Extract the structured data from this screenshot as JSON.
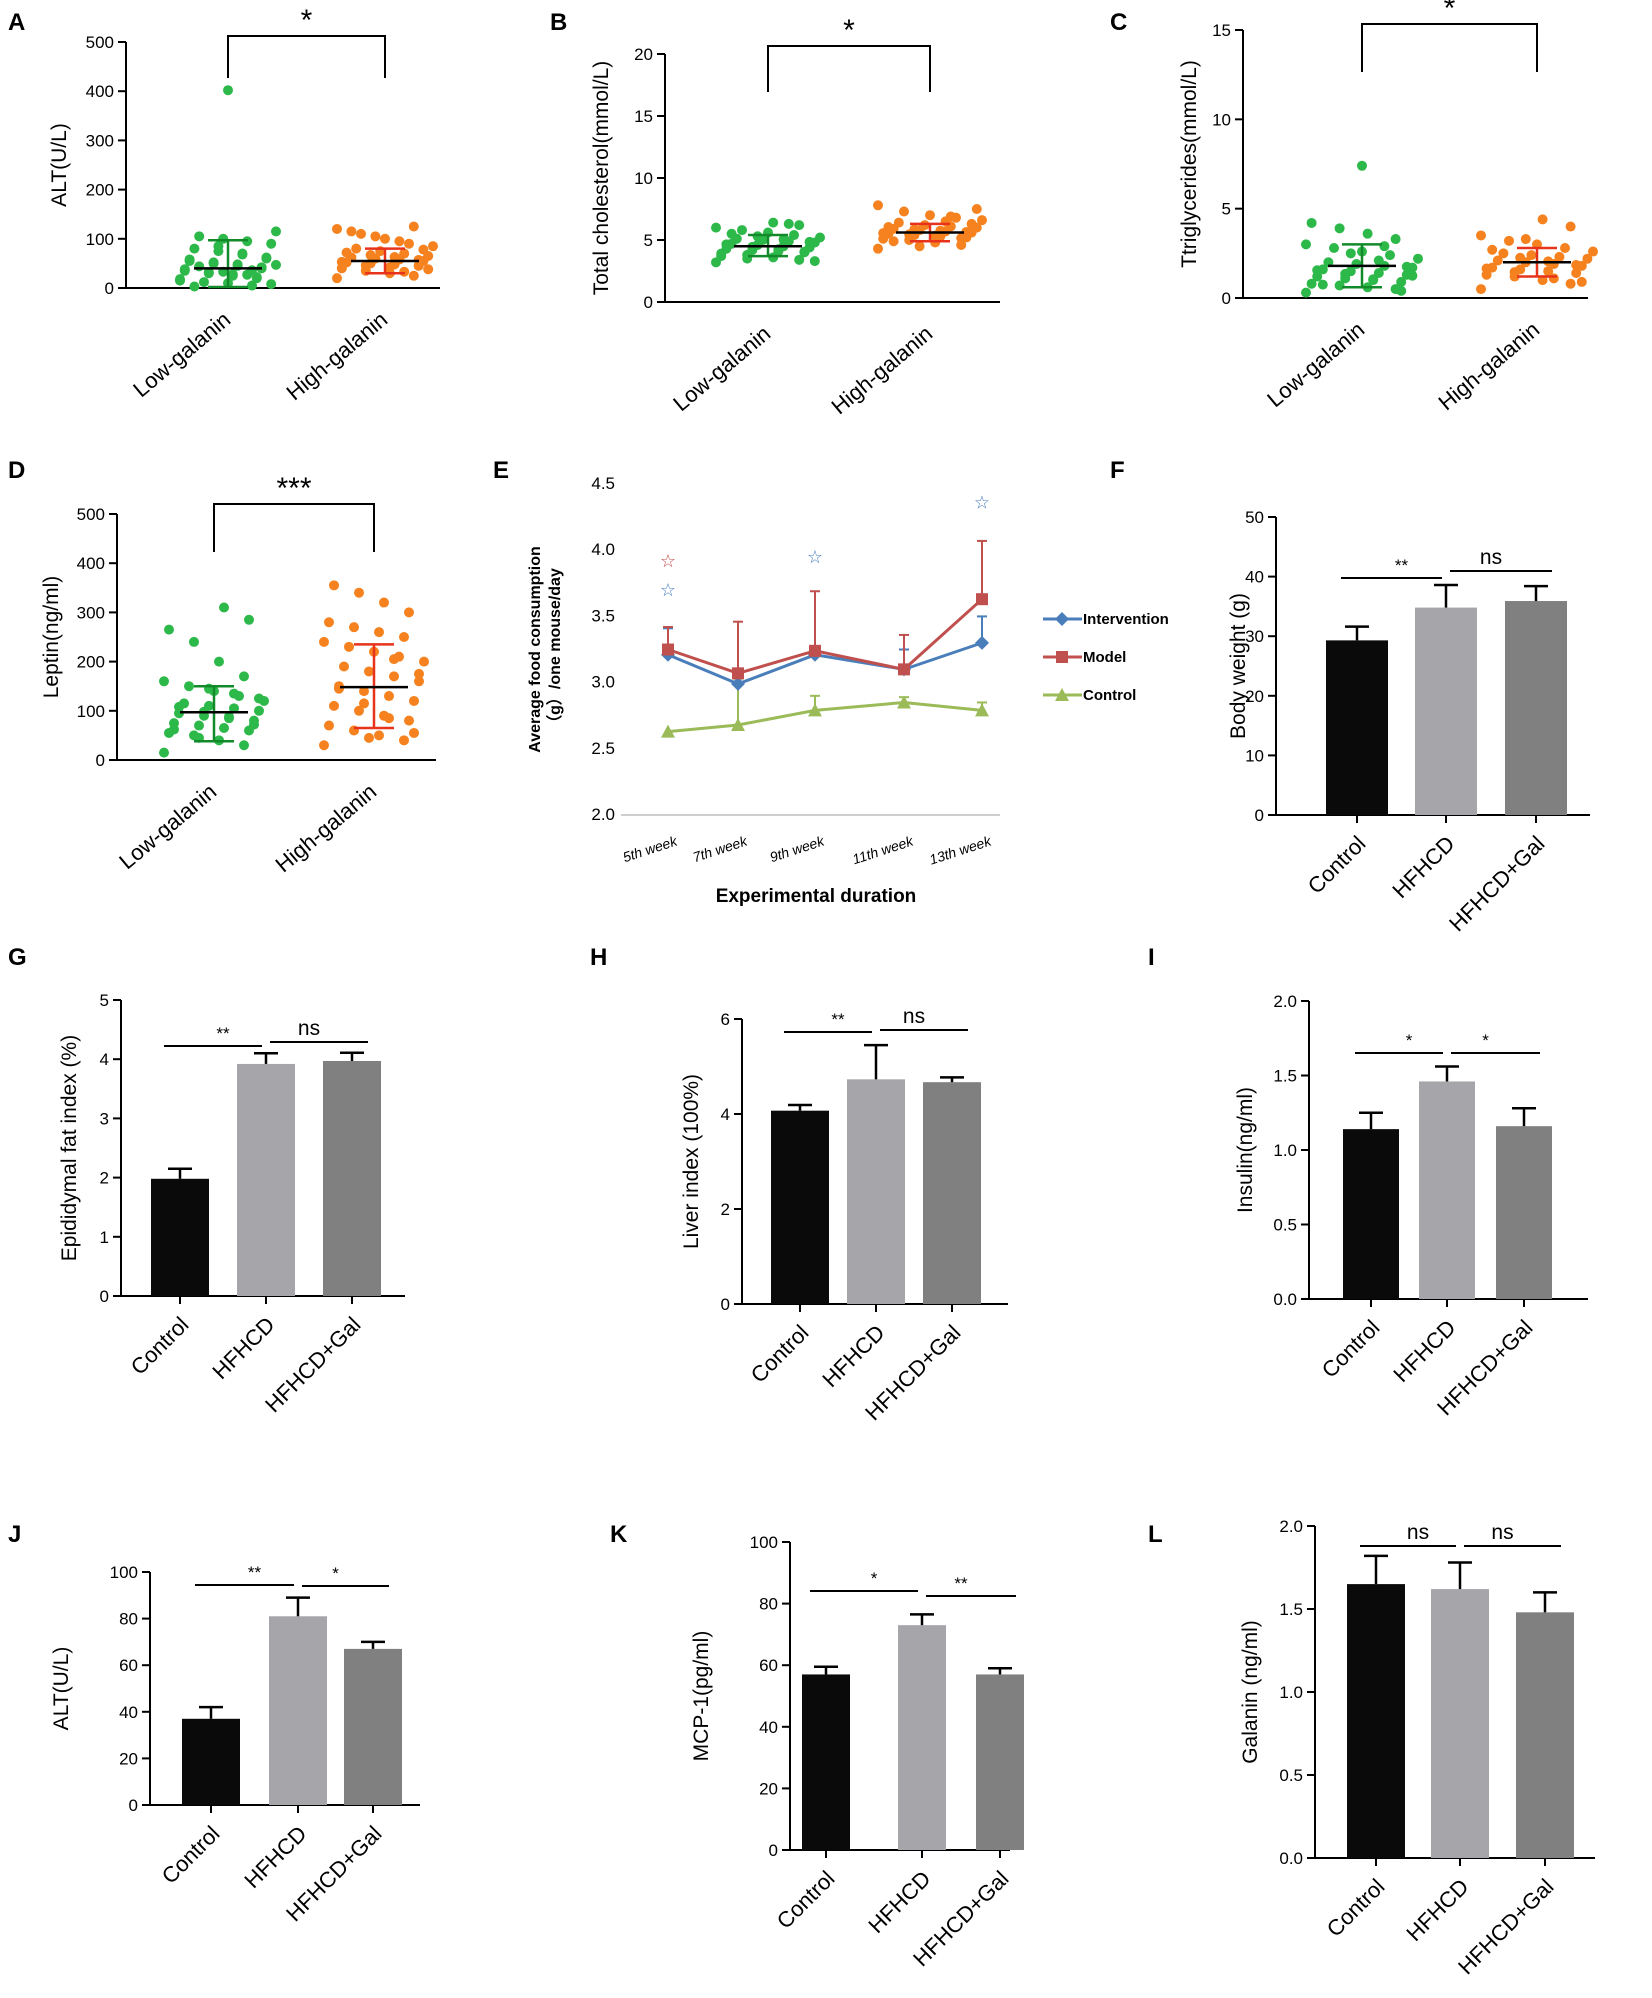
{
  "colors": {
    "low_galanin": "#2db84a",
    "high_galanin": "#f5821f",
    "low_error": "#138a2a",
    "high_error": "#e8331c",
    "bar_control": "#0a0a0a",
    "bar_hfhcd": "#a6a6aa",
    "bar_hfhcd_gal": "#808080",
    "line_intervention": "#4a7ebb",
    "line_model": "#c0504d",
    "line_control": "#9bbb59",
    "star_model": "#c0504d",
    "star_intervention": "#4a7ebb"
  },
  "chart_data": [
    {
      "panel": "A",
      "type": "scatter",
      "ylabel": "ALT(U/L)",
      "ylim": [
        0,
        500
      ],
      "yticks": [
        "0",
        "100",
        "200",
        "300",
        "400",
        "500"
      ],
      "categories": [
        "Low-galanin",
        "High-galanin"
      ],
      "groups": [
        {
          "name": "Low-galanin",
          "mean": 40,
          "sd_upper": 97,
          "sd_lower": 2,
          "outliers": [
            402
          ],
          "points": [
            15,
            20,
            25,
            30,
            35,
            40,
            45,
            50,
            55,
            60,
            70,
            75,
            80,
            90,
            95,
            100,
            105,
            115,
            5,
            10,
            12,
            18,
            22,
            28,
            32,
            38,
            42,
            48,
            52,
            58,
            62,
            68,
            85,
            3,
            8,
            27,
            33,
            44,
            47,
            36
          ]
        },
        {
          "name": "High-galanin",
          "mean": 55,
          "sd_upper": 80,
          "sd_lower": 30,
          "outliers": [],
          "points": [
            20,
            25,
            30,
            35,
            40,
            45,
            48,
            50,
            52,
            55,
            58,
            60,
            62,
            65,
            70,
            75,
            80,
            85,
            90,
            100,
            110,
            120,
            125,
            42,
            46,
            53,
            57,
            63,
            67,
            72,
            78,
            95,
            105,
            115,
            38,
            33
          ]
        }
      ],
      "significance": "*"
    },
    {
      "panel": "B",
      "type": "scatter",
      "ylabel": "Total cholesterol(mmol/L)",
      "ylim": [
        0,
        20
      ],
      "yticks": [
        "0",
        "5",
        "10",
        "15",
        "20"
      ],
      "categories": [
        "Low-galanin",
        "High-galanin"
      ],
      "groups": [
        {
          "name": "Low-galanin",
          "mean": 4.5,
          "sd_upper": 5.4,
          "sd_lower": 3.7,
          "outliers": [],
          "points": [
            3.2,
            3.4,
            3.6,
            3.8,
            3.9,
            4.0,
            4.1,
            4.2,
            4.3,
            4.4,
            4.5,
            4.6,
            4.7,
            4.8,
            4.9,
            5.0,
            5.1,
            5.2,
            5.4,
            5.6,
            5.8,
            6.0,
            6.2,
            6.4,
            3.5,
            3.7,
            4.05,
            4.25,
            4.45,
            4.65,
            4.85,
            5.05,
            5.3,
            5.5,
            3.3,
            6.3
          ]
        },
        {
          "name": "High-galanin",
          "mean": 5.6,
          "sd_upper": 6.3,
          "sd_lower": 4.9,
          "outliers": [],
          "points": [
            4.3,
            4.6,
            4.8,
            5.0,
            5.1,
            5.2,
            5.3,
            5.4,
            5.5,
            5.6,
            5.7,
            5.8,
            5.9,
            6.0,
            6.1,
            6.2,
            6.4,
            6.6,
            6.8,
            7.0,
            7.3,
            7.8,
            5.15,
            5.35,
            5.45,
            5.55,
            5.65,
            5.75,
            5.85,
            6.05,
            6.3,
            6.5,
            4.5,
            4.9,
            7.5,
            6.9
          ]
        }
      ],
      "significance": "*"
    },
    {
      "panel": "C",
      "type": "scatter",
      "ylabel": "Ttriglycerides(mmol/L)",
      "ylim": [
        0,
        15
      ],
      "yticks": [
        "0",
        "5",
        "10",
        "15"
      ],
      "categories": [
        "Low-galanin",
        "High-galanin"
      ],
      "groups": [
        {
          "name": "Low-galanin",
          "mean": 1.8,
          "sd_upper": 3.0,
          "sd_lower": 0.6,
          "outliers": [
            7.4
          ],
          "points": [
            0.3,
            0.5,
            0.6,
            0.7,
            0.8,
            0.9,
            1.0,
            1.1,
            1.2,
            1.3,
            1.4,
            1.5,
            1.6,
            1.7,
            1.8,
            1.9,
            2.0,
            2.2,
            2.4,
            2.6,
            2.8,
            3.0,
            3.3,
            3.6,
            3.9,
            4.2,
            0.4,
            1.05,
            1.35,
            1.55,
            1.75,
            2.1,
            2.5,
            0.75,
            1.25,
            2.9
          ]
        },
        {
          "name": "High-galanin",
          "mean": 2.0,
          "sd_upper": 2.8,
          "sd_lower": 1.2,
          "outliers": [],
          "points": [
            0.5,
            0.8,
            1.0,
            1.2,
            1.3,
            1.4,
            1.5,
            1.6,
            1.7,
            1.8,
            1.9,
            2.0,
            2.1,
            2.2,
            2.3,
            2.4,
            2.5,
            2.6,
            2.8,
            3.0,
            3.2,
            3.5,
            4.0,
            4.4,
            1.45,
            1.65,
            1.85,
            2.05,
            2.25,
            2.7,
            0.9,
            1.1,
            3.3
          ]
        }
      ],
      "significance": "*"
    },
    {
      "panel": "D",
      "type": "scatter",
      "ylabel": "Leptin(ng/ml)",
      "ylim": [
        0,
        500
      ],
      "yticks": [
        "0",
        "100",
        "200",
        "300",
        "400",
        "500"
      ],
      "categories": [
        "Low-galanin",
        "High-galanin"
      ],
      "groups": [
        {
          "name": "Low-galanin",
          "mean": 97,
          "sd_upper": 150,
          "sd_lower": 38,
          "outliers": [],
          "points": [
            15,
            30,
            40,
            50,
            55,
            60,
            65,
            70,
            75,
            80,
            85,
            90,
            95,
            100,
            105,
            110,
            115,
            120,
            130,
            140,
            150,
            160,
            170,
            200,
            240,
            265,
            285,
            310,
            45,
            62,
            72,
            88,
            98,
            108,
            125,
            135,
            145
          ]
        },
        {
          "name": "High-galanin",
          "mean": 148,
          "sd_upper": 235,
          "sd_lower": 65,
          "outliers": [],
          "points": [
            30,
            40,
            50,
            60,
            70,
            80,
            90,
            100,
            110,
            120,
            130,
            140,
            150,
            160,
            170,
            180,
            190,
            200,
            210,
            220,
            230,
            240,
            250,
            260,
            270,
            280,
            300,
            320,
            340,
            355,
            55,
            85,
            115,
            145,
            175,
            205,
            45
          ]
        }
      ],
      "significance": "***"
    },
    {
      "panel": "E",
      "type": "line",
      "ylabel_line1": "Average food consumption",
      "ylabel_line2": "（g）/one mouse/day",
      "xlabel": "Experimental duration",
      "ylim": [
        2.0,
        4.5
      ],
      "yticks": [
        "2.0",
        "2.5",
        "3.0",
        "3.5",
        "4.0",
        "4.5"
      ],
      "categories": [
        "5th week",
        "7th week",
        "9th week",
        "11th week",
        "13th week"
      ],
      "series": [
        {
          "name": "Intervention",
          "values": [
            3.21,
            2.99,
            3.21,
            3.1,
            3.3
          ],
          "errors": [
            0.2,
            0.0,
            0.0,
            0.15,
            0.2
          ]
        },
        {
          "name": "Model",
          "values": [
            3.25,
            3.07,
            3.24,
            3.1,
            3.63
          ],
          "errors": [
            0.17,
            0.39,
            0.45,
            0.26,
            0.44
          ]
        },
        {
          "name": "Control",
          "values": [
            2.63,
            2.68,
            2.79,
            2.85,
            2.79
          ],
          "errors": [
            0.0,
            0.35,
            0.11,
            0.04,
            0.06
          ]
        }
      ],
      "stars": [
        {
          "week": "5th week",
          "value": 3.92,
          "series": "Model"
        },
        {
          "week": "5th week",
          "value": 3.7,
          "series": "Intervention"
        },
        {
          "week": "9th week",
          "value": 3.95,
          "series": "Intervention"
        },
        {
          "week": "13th week",
          "value": 4.36,
          "series": "Intervention"
        }
      ],
      "star_symbol": "☆"
    },
    {
      "panel": "F",
      "type": "bar",
      "ylabel": "Body weight (g)",
      "ylim": [
        0,
        50
      ],
      "yticks": [
        "0",
        "10",
        "20",
        "30",
        "40",
        "50"
      ],
      "categories": [
        "Control",
        "HFHCD",
        "HFHCD+Gal"
      ],
      "values": [
        29.3,
        34.8,
        35.9
      ],
      "errors": [
        2.3,
        3.8,
        2.5
      ],
      "comparisons": [
        {
          "from": 0,
          "to": 1,
          "label": "**"
        },
        {
          "from": 1,
          "to": 2,
          "label": "ns"
        }
      ]
    },
    {
      "panel": "G",
      "type": "bar",
      "ylabel": "Epididymal fat index (%)",
      "ylim": [
        0,
        5
      ],
      "yticks": [
        "0",
        "1",
        "2",
        "3",
        "4",
        "5"
      ],
      "categories": [
        "Control",
        "HFHCD",
        "HFHCD+Gal"
      ],
      "values": [
        1.98,
        3.92,
        3.97
      ],
      "errors": [
        0.17,
        0.18,
        0.14
      ],
      "comparisons": [
        {
          "from": 0,
          "to": 1,
          "label": "**"
        },
        {
          "from": 1,
          "to": 2,
          "label": "ns"
        }
      ]
    },
    {
      "panel": "H",
      "type": "bar",
      "ylabel": "Liver index (100%)",
      "ylim": [
        0,
        6
      ],
      "yticks": [
        "0",
        "2",
        "4",
        "6"
      ],
      "categories": [
        "Control",
        "HFHCD",
        "HFHCD+Gal"
      ],
      "values": [
        4.07,
        4.73,
        4.67
      ],
      "errors": [
        0.12,
        0.72,
        0.1
      ],
      "comparisons": [
        {
          "from": 0,
          "to": 1,
          "label": "**"
        },
        {
          "from": 1,
          "to": 2,
          "label": "ns"
        }
      ]
    },
    {
      "panel": "I",
      "type": "bar",
      "ylabel": "Insulin(ng/ml)",
      "ylim": [
        0,
        2.0
      ],
      "yticks": [
        "0.0",
        "0.5",
        "1.0",
        "1.5",
        "2.0"
      ],
      "categories": [
        "Control",
        "HFHCD",
        "HFHCD+Gal"
      ],
      "values": [
        1.14,
        1.46,
        1.16
      ],
      "errors": [
        0.11,
        0.1,
        0.12
      ],
      "comparisons": [
        {
          "from": 0,
          "to": 1,
          "label": "*"
        },
        {
          "from": 1,
          "to": 2,
          "label": "*"
        }
      ]
    },
    {
      "panel": "J",
      "type": "bar",
      "ylabel": "ALT(U/L)",
      "ylim": [
        0,
        100
      ],
      "yticks": [
        "0",
        "20",
        "40",
        "60",
        "80",
        "100"
      ],
      "categories": [
        "Control",
        "HFHCD",
        "HFHCD+Gal"
      ],
      "values": [
        37,
        81,
        67
      ],
      "errors": [
        5,
        8,
        3
      ],
      "comparisons": [
        {
          "from": 0,
          "to": 1,
          "label": "**"
        },
        {
          "from": 1,
          "to": 2,
          "label": "*"
        }
      ]
    },
    {
      "panel": "K",
      "type": "bar",
      "ylabel": "MCP-1(pg/ml)",
      "ylim": [
        0,
        100
      ],
      "yticks": [
        "0",
        "20",
        "40",
        "60",
        "80",
        "100"
      ],
      "categories": [
        "Control",
        "HFHCD",
        "HFHCD+Gal"
      ],
      "values": [
        57,
        73,
        57
      ],
      "errors": [
        2.5,
        3.5,
        2
      ],
      "comparisons": [
        {
          "from": 0,
          "to": 1,
          "label": "*"
        },
        {
          "from": 1,
          "to": 2,
          "label": "**"
        }
      ]
    },
    {
      "panel": "L",
      "type": "bar",
      "ylabel": "Galanin (ng/ml)",
      "ylim": [
        0,
        2.0
      ],
      "yticks": [
        "0.0",
        "0.5",
        "1.0",
        "1.5",
        "2.0"
      ],
      "categories": [
        "Control",
        "HFHCD",
        "HFHCD+Gal"
      ],
      "values": [
        1.65,
        1.62,
        1.48
      ],
      "errors": [
        0.17,
        0.16,
        0.12
      ],
      "comparisons": [
        {
          "from": 0,
          "to": 1,
          "label": "ns"
        },
        {
          "from": 1,
          "to": 2,
          "label": "ns"
        }
      ]
    }
  ]
}
